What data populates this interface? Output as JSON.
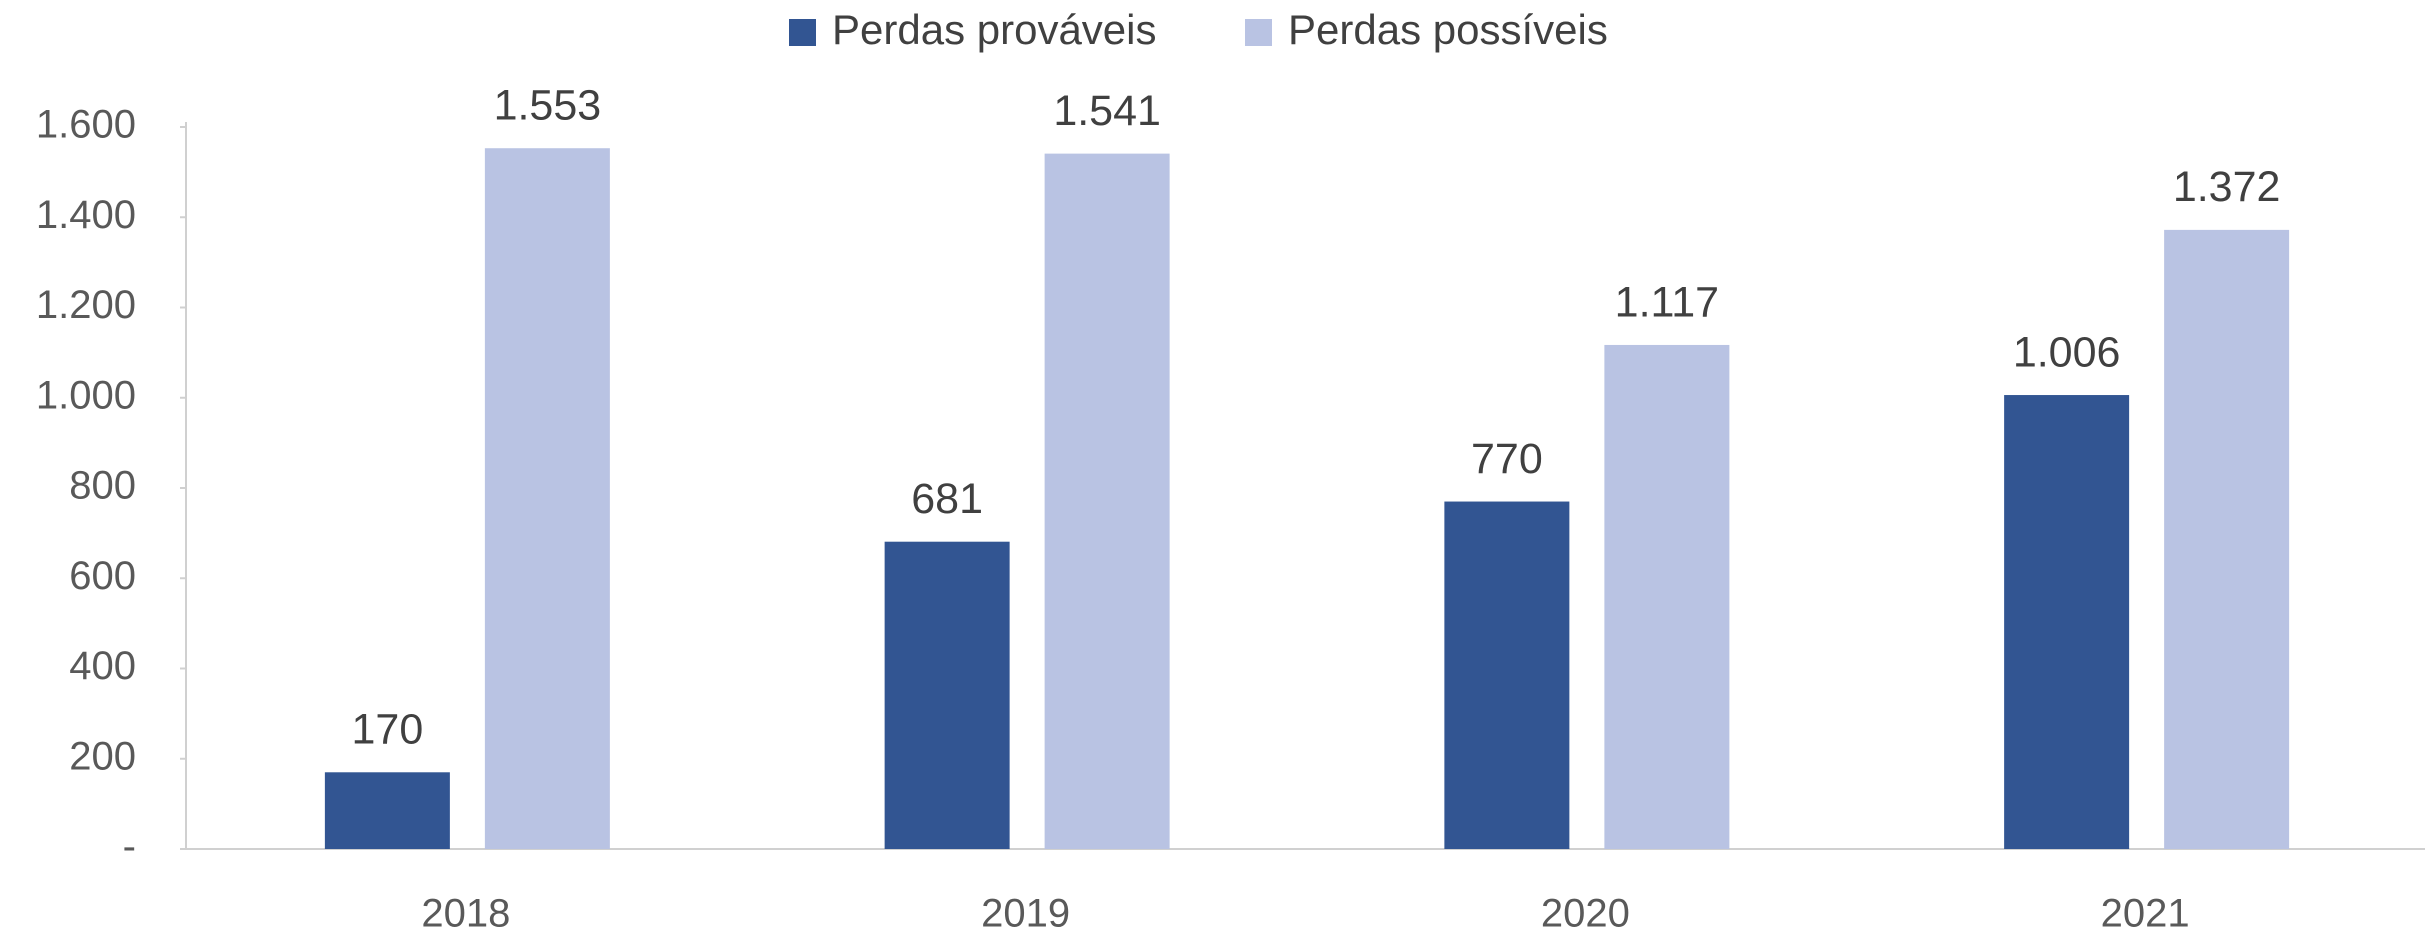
{
  "chart_data": {
    "type": "bar",
    "categories": [
      "2018",
      "2019",
      "2020",
      "2021"
    ],
    "series": [
      {
        "name": "Perdas prováveis",
        "color": "#325592",
        "values": [
          170,
          681,
          770,
          1006
        ],
        "value_labels": [
          "170",
          "681",
          "770",
          "1.006"
        ]
      },
      {
        "name": "Perdas possíveis",
        "color": "#b9c3e3",
        "values": [
          1553,
          1541,
          1117,
          1372
        ],
        "value_labels": [
          "1.553",
          "1.541",
          "1.117",
          "1.372"
        ]
      }
    ],
    "ylim": [
      0,
      1600
    ],
    "yticks": [
      {
        "value": 0,
        "label": "-"
      },
      200,
      400,
      600,
      800,
      {
        "value": 1000,
        "label": "1.000"
      },
      {
        "value": 1200,
        "label": "1.200"
      },
      {
        "value": 1400,
        "label": "1.400"
      },
      {
        "value": 1600,
        "label": "1.600"
      }
    ],
    "legend": "top",
    "grid": false
  }
}
